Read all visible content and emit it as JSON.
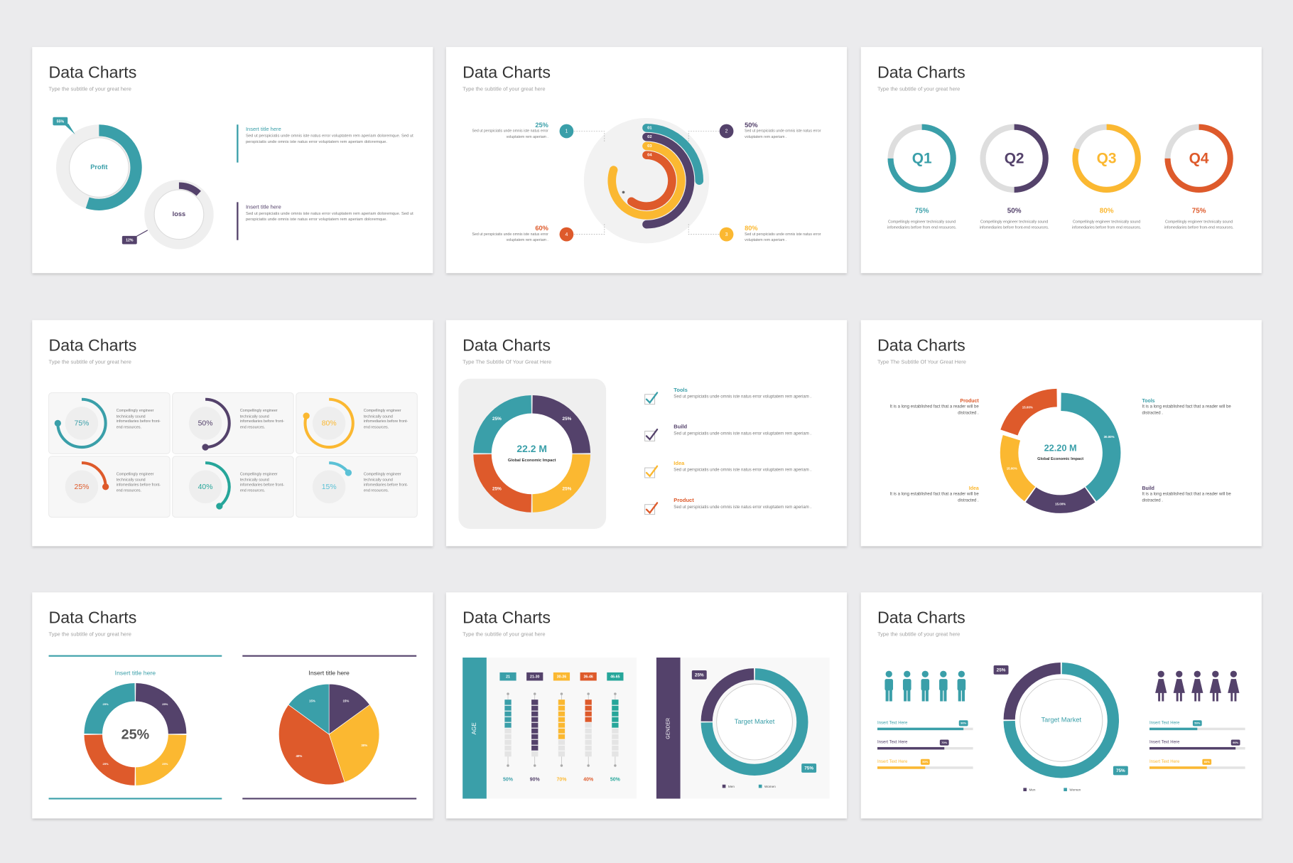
{
  "slides": [
    {
      "title": "Data Charts",
      "subtitle": "Type the subtitle of your great here",
      "donuts": [
        {
          "label": "Profit",
          "value": 55,
          "value_label": "55%",
          "color": "#3a9fa9"
        },
        {
          "label": "loss",
          "value": 12,
          "value_label": "12%",
          "color": "#54426b"
        }
      ],
      "items": [
        {
          "title": "Insert title here",
          "text": "Sed ut perspiciatis unde omnis iste natus error voluptatem rem aperiam doloremque. Sed ut perspiciatis unde omnis iste natus error voluptatem rem aperiam doloremque.",
          "color": "#3a9fa9"
        },
        {
          "title": "Insert title here",
          "text": "Sed ut perspiciatis unde omnis iste natus error voluptatem rem aperiam doloremque. Sed ut perspiciatis unde omnis iste natus error voluptatem rem aperiam doloremque.",
          "color": "#54426b"
        }
      ]
    },
    {
      "title": "Data Charts",
      "subtitle": "Type the subtitle of your great here",
      "items": [
        {
          "number": "1",
          "ring": "01",
          "value": 25,
          "value_label": "25%",
          "text": "Sed ut perspiciatis unde omnis iste natus error voluptatem rem aperiam .",
          "color": "#3a9fa9"
        },
        {
          "number": "2",
          "ring": "02",
          "value": 50,
          "value_label": "50%",
          "text": "Sed ut perspiciatis unde omnis iste natus error voluptatem rem aperiam .",
          "color": "#54426b"
        },
        {
          "number": "3",
          "ring": "03",
          "value": 80,
          "value_label": "80%",
          "text": "Sed ut perspiciatis unde omnis iste natus error voluptatem rem aperiam .",
          "color": "#fbb831"
        },
        {
          "number": "4",
          "ring": "04",
          "value": 60,
          "value_label": "60%",
          "text": "Sed ut perspiciatis unde omnis iste natus error voluptatem rem aperiam .",
          "color": "#de5a2b"
        }
      ]
    },
    {
      "title": "Data Charts",
      "subtitle": "Type the subtitle of your great here",
      "items": [
        {
          "label": "Q1",
          "value": 75,
          "value_label": "75%",
          "text": "Compellingly engineer technically sound infomediaries before from end resources.",
          "color": "#3a9fa9"
        },
        {
          "label": "Q2",
          "value": 50,
          "value_label": "50%",
          "text": "Compellingly engineer technically sound infomediaries before front-end resources.",
          "color": "#54426b"
        },
        {
          "label": "Q3",
          "value": 80,
          "value_label": "80%",
          "text": "Compellingly engineer technically sound infomediaries before from end resources.",
          "color": "#fbb831"
        },
        {
          "label": "Q4",
          "value": 75,
          "value_label": "75%",
          "text": "Compellingly engineer technically sound infomediaries before from-end resources.",
          "color": "#de5a2b"
        }
      ]
    },
    {
      "title": "Data Charts",
      "subtitle": "Type the subtitle of your great here",
      "items": [
        {
          "value": 75,
          "value_label": "75%",
          "text": "Compellingly engineer technically sound infomediaries before front-end resources.",
          "color": "#3a9fa9"
        },
        {
          "value": 50,
          "value_label": "50%",
          "text": "Compellingly engineer technically sound infomediaries before front-end resources.",
          "color": "#54426b"
        },
        {
          "value": 80,
          "value_label": "80%",
          "text": "Compellingly engineer technically sound infomediaries before front-end resources.",
          "color": "#fbb831"
        },
        {
          "value": 25,
          "value_label": "25%",
          "text": "Compellingly engineer technically sound infomediaries before front-end resources.",
          "color": "#de5a2b"
        },
        {
          "value": 40,
          "value_label": "40%",
          "text": "Compellingly engineer technically sound infomediaries before front-end resources.",
          "color": "#26a69a"
        },
        {
          "value": 15,
          "value_label": "15%",
          "text": "Compellingly engineer technically sound infomediaries before front-end resources.",
          "color": "#5bc1d6"
        }
      ]
    },
    {
      "title": "Data Charts",
      "subtitle": "Type The Subtitle Of Your Great Here",
      "center_value": "22.2 M",
      "center_label": "Global Economic Impact",
      "segments": [
        {
          "value": 25,
          "value_label": "25%",
          "color": "#54426b"
        },
        {
          "value": 25,
          "value_label": "25%",
          "color": "#fbb831"
        },
        {
          "value": 25,
          "value_label": "25%",
          "color": "#de5a2b"
        },
        {
          "value": 25,
          "value_label": "25%",
          "color": "#3a9fa9"
        }
      ],
      "items": [
        {
          "title": "Tools",
          "text": "Sed ut perspiciatis unde omnis iste natus error voluptatem rem aperiam .",
          "color": "#3a9fa9"
        },
        {
          "title": "Build",
          "text": "Sed ut perspiciatis unde omnis iste natus error voluptatem rem aperiam .",
          "color": "#54426b"
        },
        {
          "title": "Idea",
          "text": "Sed ut perspiciatis unde omnis iste natus error voluptatem rem aperiam .",
          "color": "#fbb831"
        },
        {
          "title": "Product",
          "text": "Sed ut perspiciatis unde omnis iste natus error voluptatem rem aperiam .",
          "color": "#de5a2b"
        }
      ]
    },
    {
      "title": "Data Charts",
      "subtitle": "Type The Subtitle Of Your Great Here",
      "center_value": "22.20 M",
      "center_label": "Global Economic Impact",
      "segments": [
        {
          "value": 30,
          "value_label": "30.00%",
          "color": "#3a9fa9"
        },
        {
          "value": 15,
          "value_label": "15.00%",
          "color": "#54426b"
        },
        {
          "value": 15,
          "value_label": "15.00%",
          "color": "#fbb831"
        },
        {
          "value": 15,
          "value_label": "15.00%",
          "color": "#de5a2b"
        }
      ],
      "items": [
        {
          "title": "Product",
          "text": "It is a long established fact that a reader will be distracted .",
          "color": "#de5a2b"
        },
        {
          "title": "Tools",
          "text": "It is a long established fact that a reader will be distracted .",
          "color": "#3a9fa9"
        },
        {
          "title": "Idea",
          "text": "It is a long established fact that a reader will be distracted .",
          "color": "#fbb831"
        },
        {
          "title": "Build",
          "text": "It is a long established fact that a reader will be distracted .",
          "color": "#54426b"
        }
      ]
    },
    {
      "title": "Data Charts",
      "subtitle": "Type the subtitle of your great here",
      "charts": [
        {
          "title": "Insert title here",
          "center": "25%",
          "color": "#3a9fa9",
          "segments": [
            {
              "value": 25,
              "value_label": "25%",
              "color": "#54426b"
            },
            {
              "value": 25,
              "value_label": "25%",
              "color": "#fbb831"
            },
            {
              "value": 25,
              "value_label": "25%",
              "color": "#de5a2b"
            },
            {
              "value": 25,
              "value_label": "25%",
              "color": "#3a9fa9"
            }
          ]
        },
        {
          "title": "Insert title here",
          "color": "#54426b",
          "segments": [
            {
              "value": 15,
              "value_label": "15%",
              "color": "#54426b"
            },
            {
              "value": 30,
              "value_label": "30%",
              "color": "#fbb831"
            },
            {
              "value": 40,
              "value_label": "40%",
              "color": "#de5a2b"
            },
            {
              "value": 15,
              "value_label": "15%",
              "color": "#3a9fa9"
            }
          ]
        }
      ]
    },
    {
      "title": "Data Charts",
      "subtitle": "Type the subtitle of your great here",
      "age": {
        "axis_label": "AGE",
        "categories": [
          "21",
          "21-30",
          "30-36",
          "36-46",
          "46-65"
        ],
        "values": [
          50,
          90,
          70,
          40,
          50
        ],
        "value_labels": [
          "50%",
          "90%",
          "70%",
          "40%",
          "50%"
        ],
        "colors": [
          "#3a9fa9",
          "#54426b",
          "#fbb831",
          "#de5a2b",
          "#26a69a"
        ]
      },
      "gender": {
        "axis_label": "GENDER",
        "center": "Target Market",
        "segments": [
          {
            "name": "Men",
            "value": 25,
            "value_label": "25%",
            "color": "#54426b"
          },
          {
            "name": "Women",
            "value": 75,
            "value_label": "75%",
            "color": "#3a9fa9"
          }
        ]
      }
    },
    {
      "title": "Data Charts",
      "subtitle": "Type the subtitle of your great here",
      "bars_left": [
        {
          "label": "Insert Text Here",
          "value": 90,
          "value_label": "90%",
          "color": "#3a9fa9"
        },
        {
          "label": "Insert Text Here",
          "value": 70,
          "value_label": "70%",
          "color": "#54426b"
        },
        {
          "label": "Insert Text Here",
          "value": 50,
          "value_label": "50%",
          "color": "#fbb831"
        }
      ],
      "bars_right": [
        {
          "label": "Insert Text Here",
          "value": 50,
          "value_label": "50%",
          "color": "#3a9fa9"
        },
        {
          "label": "Insert Text Here",
          "value": 90,
          "value_label": "90%",
          "color": "#54426b"
        },
        {
          "label": "Insert Text Here",
          "value": 60,
          "value_label": "60%",
          "color": "#fbb831"
        }
      ],
      "center": "Target Market",
      "segments": [
        {
          "name": "Men",
          "value": 25,
          "value_label": "25%",
          "color": "#54426b"
        },
        {
          "name": "Women",
          "value": 75,
          "value_label": "75%",
          "color": "#3a9fa9"
        }
      ]
    }
  ]
}
